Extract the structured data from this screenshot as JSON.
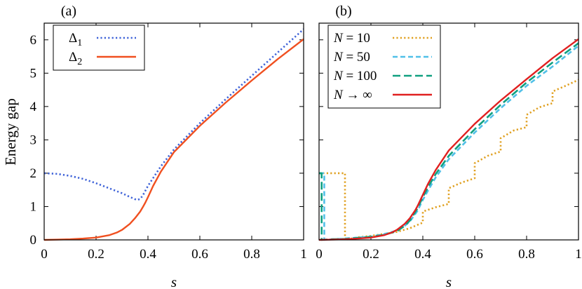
{
  "chart_data": [
    {
      "type": "line",
      "panel_label": "(a)",
      "xlabel": "s",
      "ylabel": "Energy gap",
      "xlim": [
        0,
        1
      ],
      "ylim": [
        0,
        6.5
      ],
      "xticks": [
        0,
        0.2,
        0.4,
        0.6,
        0.8,
        1
      ],
      "xtick_labels": [
        "0",
        "0.2",
        "0.4",
        "0.6",
        "0.8",
        "1"
      ],
      "yticks": [
        0,
        1,
        2,
        3,
        4,
        5,
        6
      ],
      "ytick_labels": [
        "0",
        "1",
        "2",
        "3",
        "4",
        "5",
        "6"
      ],
      "legend_position": "top-left",
      "series": [
        {
          "name": "Δ1",
          "name_base": "Δ",
          "name_sub": "1",
          "color": "#3f63d8",
          "style": "dotted",
          "x": [
            0,
            0.05,
            0.1,
            0.15,
            0.2,
            0.25,
            0.3,
            0.33,
            0.35,
            0.36,
            0.37,
            0.38,
            0.4,
            0.45,
            0.5,
            0.6,
            0.7,
            0.8,
            0.9,
            1.0
          ],
          "y": [
            2.0,
            1.98,
            1.92,
            1.83,
            1.7,
            1.55,
            1.4,
            1.29,
            1.22,
            1.2,
            1.23,
            1.33,
            1.62,
            2.21,
            2.71,
            3.5,
            4.22,
            4.92,
            5.62,
            6.32
          ]
        },
        {
          "name": "Δ2",
          "name_base": "Δ",
          "name_sub": "2",
          "color": "#f05020",
          "style": "solid",
          "x": [
            0,
            0.05,
            0.1,
            0.15,
            0.2,
            0.25,
            0.28,
            0.3,
            0.33,
            0.35,
            0.37,
            0.38,
            0.39,
            0.4,
            0.42,
            0.45,
            0.5,
            0.6,
            0.7,
            0.8,
            0.9,
            1.0
          ],
          "y": [
            0.0,
            0.01,
            0.02,
            0.04,
            0.07,
            0.14,
            0.22,
            0.3,
            0.48,
            0.65,
            0.85,
            0.98,
            1.12,
            1.28,
            1.62,
            2.05,
            2.63,
            3.42,
            4.12,
            4.78,
            5.42,
            6.02
          ]
        }
      ]
    },
    {
      "type": "line",
      "panel_label": "(b)",
      "xlabel": "s",
      "ylabel": "",
      "xlim": [
        0,
        1
      ],
      "ylim": [
        0,
        6.5
      ],
      "xticks": [
        0,
        0.2,
        0.4,
        0.6,
        0.8,
        1
      ],
      "xtick_labels": [
        "0",
        "0.2",
        "0.4",
        "0.6",
        "0.8",
        "1"
      ],
      "yticks": [
        0,
        1,
        2,
        3,
        4,
        5,
        6
      ],
      "ytick_labels": [],
      "legend_position": "top-left",
      "series": [
        {
          "name": "N = 10",
          "name_prefix": "N",
          "name_suffix": " = 10",
          "color": "#e0a020",
          "style": "dotted",
          "x": [
            0,
            0.1,
            0.1,
            0.15,
            0.2,
            0.25,
            0.3,
            0.35,
            0.4,
            0.4,
            0.45,
            0.5,
            0.5,
            0.55,
            0.6,
            0.6,
            0.65,
            0.7,
            0.7,
            0.75,
            0.8,
            0.8,
            0.85,
            0.9,
            0.9,
            0.95,
            1.0
          ],
          "y": [
            2.0,
            2.0,
            0.0,
            0.08,
            0.12,
            0.18,
            0.24,
            0.35,
            0.52,
            0.85,
            0.98,
            1.08,
            1.55,
            1.72,
            1.85,
            2.3,
            2.52,
            2.65,
            3.05,
            3.28,
            3.38,
            3.75,
            3.98,
            4.1,
            4.45,
            4.62,
            4.8
          ]
        },
        {
          "name": "N = 50",
          "name_prefix": "N",
          "name_suffix": " = 50",
          "color": "#50c0e8",
          "style": "dashed",
          "x": [
            0,
            0.02,
            0.02,
            0.05,
            0.1,
            0.15,
            0.2,
            0.25,
            0.3,
            0.33,
            0.35,
            0.38,
            0.4,
            0.42,
            0.45,
            0.5,
            0.6,
            0.7,
            0.8,
            0.9,
            1.0
          ],
          "y": [
            2.0,
            2.0,
            0.0,
            0.02,
            0.04,
            0.07,
            0.1,
            0.17,
            0.28,
            0.42,
            0.55,
            0.88,
            1.2,
            1.48,
            1.88,
            2.42,
            3.22,
            3.95,
            4.62,
            5.2,
            5.82
          ]
        },
        {
          "name": "N = 100",
          "name_prefix": "N",
          "name_suffix": " = 100",
          "color": "#10a080",
          "style": "longdash",
          "x": [
            0,
            0.01,
            0.01,
            0.05,
            0.1,
            0.15,
            0.2,
            0.25,
            0.3,
            0.33,
            0.35,
            0.38,
            0.4,
            0.42,
            0.45,
            0.5,
            0.6,
            0.7,
            0.8,
            0.9,
            1.0
          ],
          "y": [
            2.0,
            2.0,
            0.0,
            0.02,
            0.03,
            0.06,
            0.09,
            0.15,
            0.26,
            0.42,
            0.58,
            0.95,
            1.28,
            1.58,
            1.98,
            2.52,
            3.32,
            4.05,
            4.72,
            5.32,
            5.9
          ]
        },
        {
          "name": "N → ∞",
          "name_prefix": "N",
          "name_suffix": " → ∞",
          "color": "#e02020",
          "style": "solid",
          "x": [
            0,
            0.05,
            0.1,
            0.15,
            0.2,
            0.25,
            0.28,
            0.3,
            0.33,
            0.35,
            0.37,
            0.38,
            0.4,
            0.42,
            0.45,
            0.5,
            0.6,
            0.7,
            0.8,
            0.9,
            1.0
          ],
          "y": [
            0.0,
            0.01,
            0.02,
            0.04,
            0.07,
            0.14,
            0.22,
            0.3,
            0.48,
            0.65,
            0.88,
            1.02,
            1.35,
            1.68,
            2.1,
            2.68,
            3.48,
            4.18,
            4.82,
            5.45,
            6.02
          ]
        }
      ]
    }
  ]
}
